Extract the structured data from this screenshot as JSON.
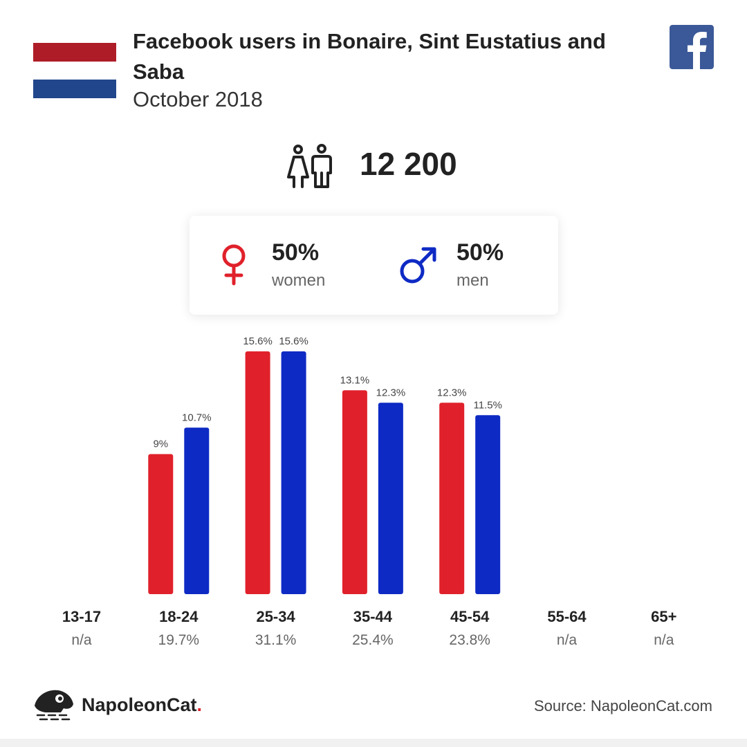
{
  "header": {
    "title": "Facebook users in Bonaire, Sint Eustatius and Saba",
    "subtitle": "October 2018"
  },
  "summary": {
    "total_users": "12 200",
    "women_pct": "50%",
    "women_label": "women",
    "men_pct": "50%",
    "men_label": "men"
  },
  "colors": {
    "women": "#e0212b",
    "men": "#0e2ac4",
    "flag_red": "#ae1c28",
    "flag_white": "#ffffff",
    "flag_blue": "#21468b",
    "facebook": "#3b5998"
  },
  "icons": {
    "flag": "netherlands-flag-icon",
    "facebook": "facebook-logo-icon",
    "users": "users-couple-icon",
    "female": "female-symbol-icon",
    "male": "male-symbol-icon",
    "brand": "napoleoncat-logo-icon"
  },
  "chart_data": {
    "type": "bar",
    "categories": [
      "13-17",
      "18-24",
      "25-34",
      "35-44",
      "45-54",
      "55-64",
      "65+"
    ],
    "category_totals": [
      "n/a",
      "19.7%",
      "31.1%",
      "25.4%",
      "23.8%",
      "n/a",
      "n/a"
    ],
    "series": [
      {
        "values": [
          null,
          9,
          15.6,
          13.1,
          12.3,
          null,
          null
        ],
        "labels": [
          "",
          "9%",
          "15.6%",
          "13.1%",
          "12.3%",
          "",
          ""
        ]
      },
      {
        "values": [
          null,
          10.7,
          15.6,
          12.3,
          11.5,
          null,
          null
        ],
        "labels": [
          "",
          "10.7%",
          "15.6%",
          "12.3%",
          "11.5%",
          "",
          ""
        ]
      }
    ],
    "ylim": [
      0,
      15.6
    ],
    "grid": false,
    "legend": "top"
  },
  "footer": {
    "brand_name": "NapoleonCat",
    "brand_dot": ".",
    "source": "Source: NapoleonCat.com"
  }
}
